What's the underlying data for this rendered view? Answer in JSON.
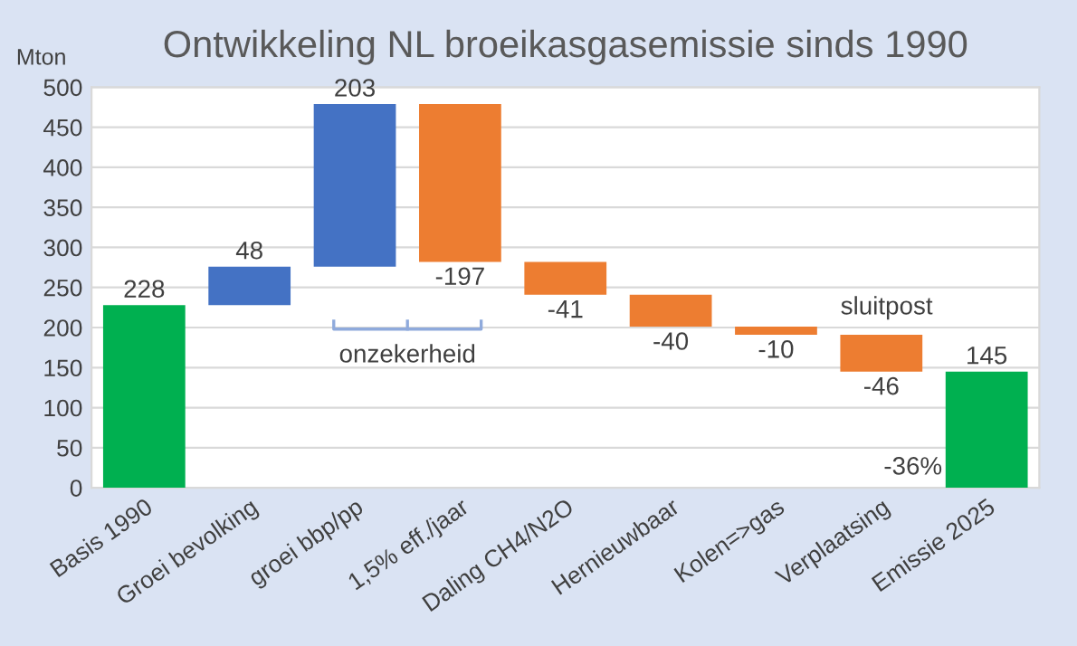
{
  "chart_data": {
    "type": "bar",
    "title": "Ontwikkeling NL broeikasgasemissie sinds 1990",
    "ylabel": "Mton",
    "categories": [
      "Basis 1990",
      "Groei bevolking",
      "groei bbp/pp",
      "1,5% eff./jaar",
      "Daling CH4/N2O",
      "Hernieuwbaar",
      "Kolen=>gas",
      "Verplaatsing",
      "Emissie 2025"
    ],
    "values": [
      228,
      48,
      203,
      -197,
      -41,
      -40,
      -10,
      -46,
      145
    ],
    "base": [
      0,
      228,
      276,
      479,
      282,
      241,
      201,
      191,
      0
    ],
    "colors": [
      "#00b050",
      "#4472c4",
      "#4472c4",
      "#ed7d31",
      "#ed7d31",
      "#ed7d31",
      "#ed7d31",
      "#ed7d31",
      "#00b050"
    ],
    "ylim": [
      0,
      500
    ],
    "yticks": [
      0,
      50,
      100,
      150,
      200,
      250,
      300,
      350,
      400,
      450,
      500
    ],
    "grid": "y",
    "data_labels": true,
    "annotations": [
      "onzekerheid",
      "sluitpost",
      "-36%"
    ]
  }
}
